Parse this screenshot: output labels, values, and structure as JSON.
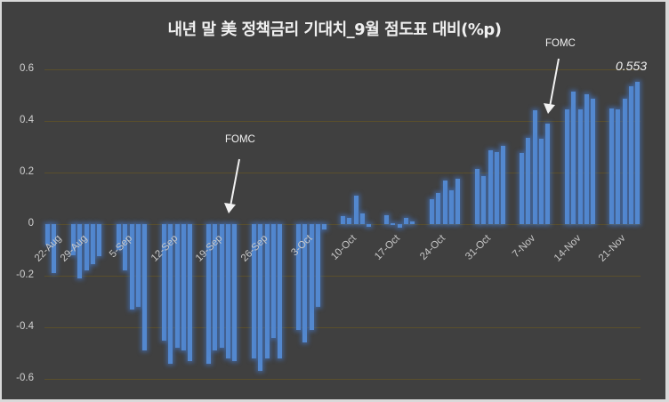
{
  "chart_data": {
    "type": "bar",
    "title": "내년 말 美 정책금리 기대치_9월 점도표 대비(%p)",
    "xlabel": "",
    "ylabel": "",
    "ylim": [
      -0.6,
      0.6
    ],
    "grid": true,
    "legend": "none",
    "y_ticks": [
      "0.6",
      "0.4",
      "0.2",
      "0",
      "-0.2",
      "-0.4",
      "-0.6"
    ],
    "x_tick_labels": [
      "22-Aug",
      "29-Aug",
      "5-Sep",
      "12-Sep",
      "19-Sep",
      "26-Sep",
      "3-Oct",
      "10-Oct",
      "17-Oct",
      "24-Oct",
      "31-Oct",
      "7-Nov",
      "14-Nov",
      "21-Nov"
    ],
    "groups": [
      {
        "week": "22-Aug",
        "values": [
          -0.08,
          -0.19
        ]
      },
      {
        "week": "29-Aug",
        "values": [
          -0.12,
          -0.21,
          -0.18,
          -0.155,
          -0.125
        ]
      },
      {
        "week": "5-Sep",
        "values": [
          -0.1,
          -0.18,
          -0.33,
          -0.32,
          -0.49
        ]
      },
      {
        "week": "12-Sep",
        "values": [
          -0.45,
          -0.54,
          -0.48,
          -0.49,
          -0.53
        ]
      },
      {
        "week": "19-Sep",
        "values": [
          -0.54,
          -0.49,
          -0.48,
          -0.52,
          -0.53
        ]
      },
      {
        "week": "26-Sep",
        "values": [
          -0.52,
          -0.57,
          -0.52,
          -0.44,
          -0.52
        ]
      },
      {
        "week": "3-Oct",
        "values": [
          -0.41,
          -0.46,
          -0.41,
          -0.32,
          -0.02
        ]
      },
      {
        "week": "10-Oct",
        "values": [
          0.03,
          0.025,
          0.11,
          0.04,
          -0.01
        ]
      },
      {
        "week": "17-Oct",
        "values": [
          0.035,
          0.005,
          -0.015,
          0.025,
          0.01
        ]
      },
      {
        "week": "24-Oct",
        "values": [
          0.095,
          0.12,
          0.17,
          0.13,
          0.175
        ]
      },
      {
        "week": "31-Oct",
        "values": [
          0.215,
          0.185,
          0.285,
          0.28,
          0.305
        ]
      },
      {
        "week": "7-Nov",
        "values": [
          0.275,
          0.335,
          0.44,
          0.33,
          0.39
        ]
      },
      {
        "week": "14-Nov",
        "values": [
          0.445,
          0.515,
          0.445,
          0.505,
          0.485
        ]
      },
      {
        "week": "21-Nov",
        "values": [
          0.45,
          0.445,
          0.485,
          0.535,
          0.553
        ]
      }
    ],
    "annotations": [
      {
        "text": "FOMC",
        "near": "19-Sep"
      },
      {
        "text": "FOMC",
        "near": "7-Nov"
      },
      {
        "text": "0.553",
        "near": "21-Nov last value"
      }
    ],
    "colors": {
      "bar": "#5388cf",
      "background": "#404040",
      "grid": "#5a4f2c",
      "text": "#d0d0d0"
    }
  }
}
